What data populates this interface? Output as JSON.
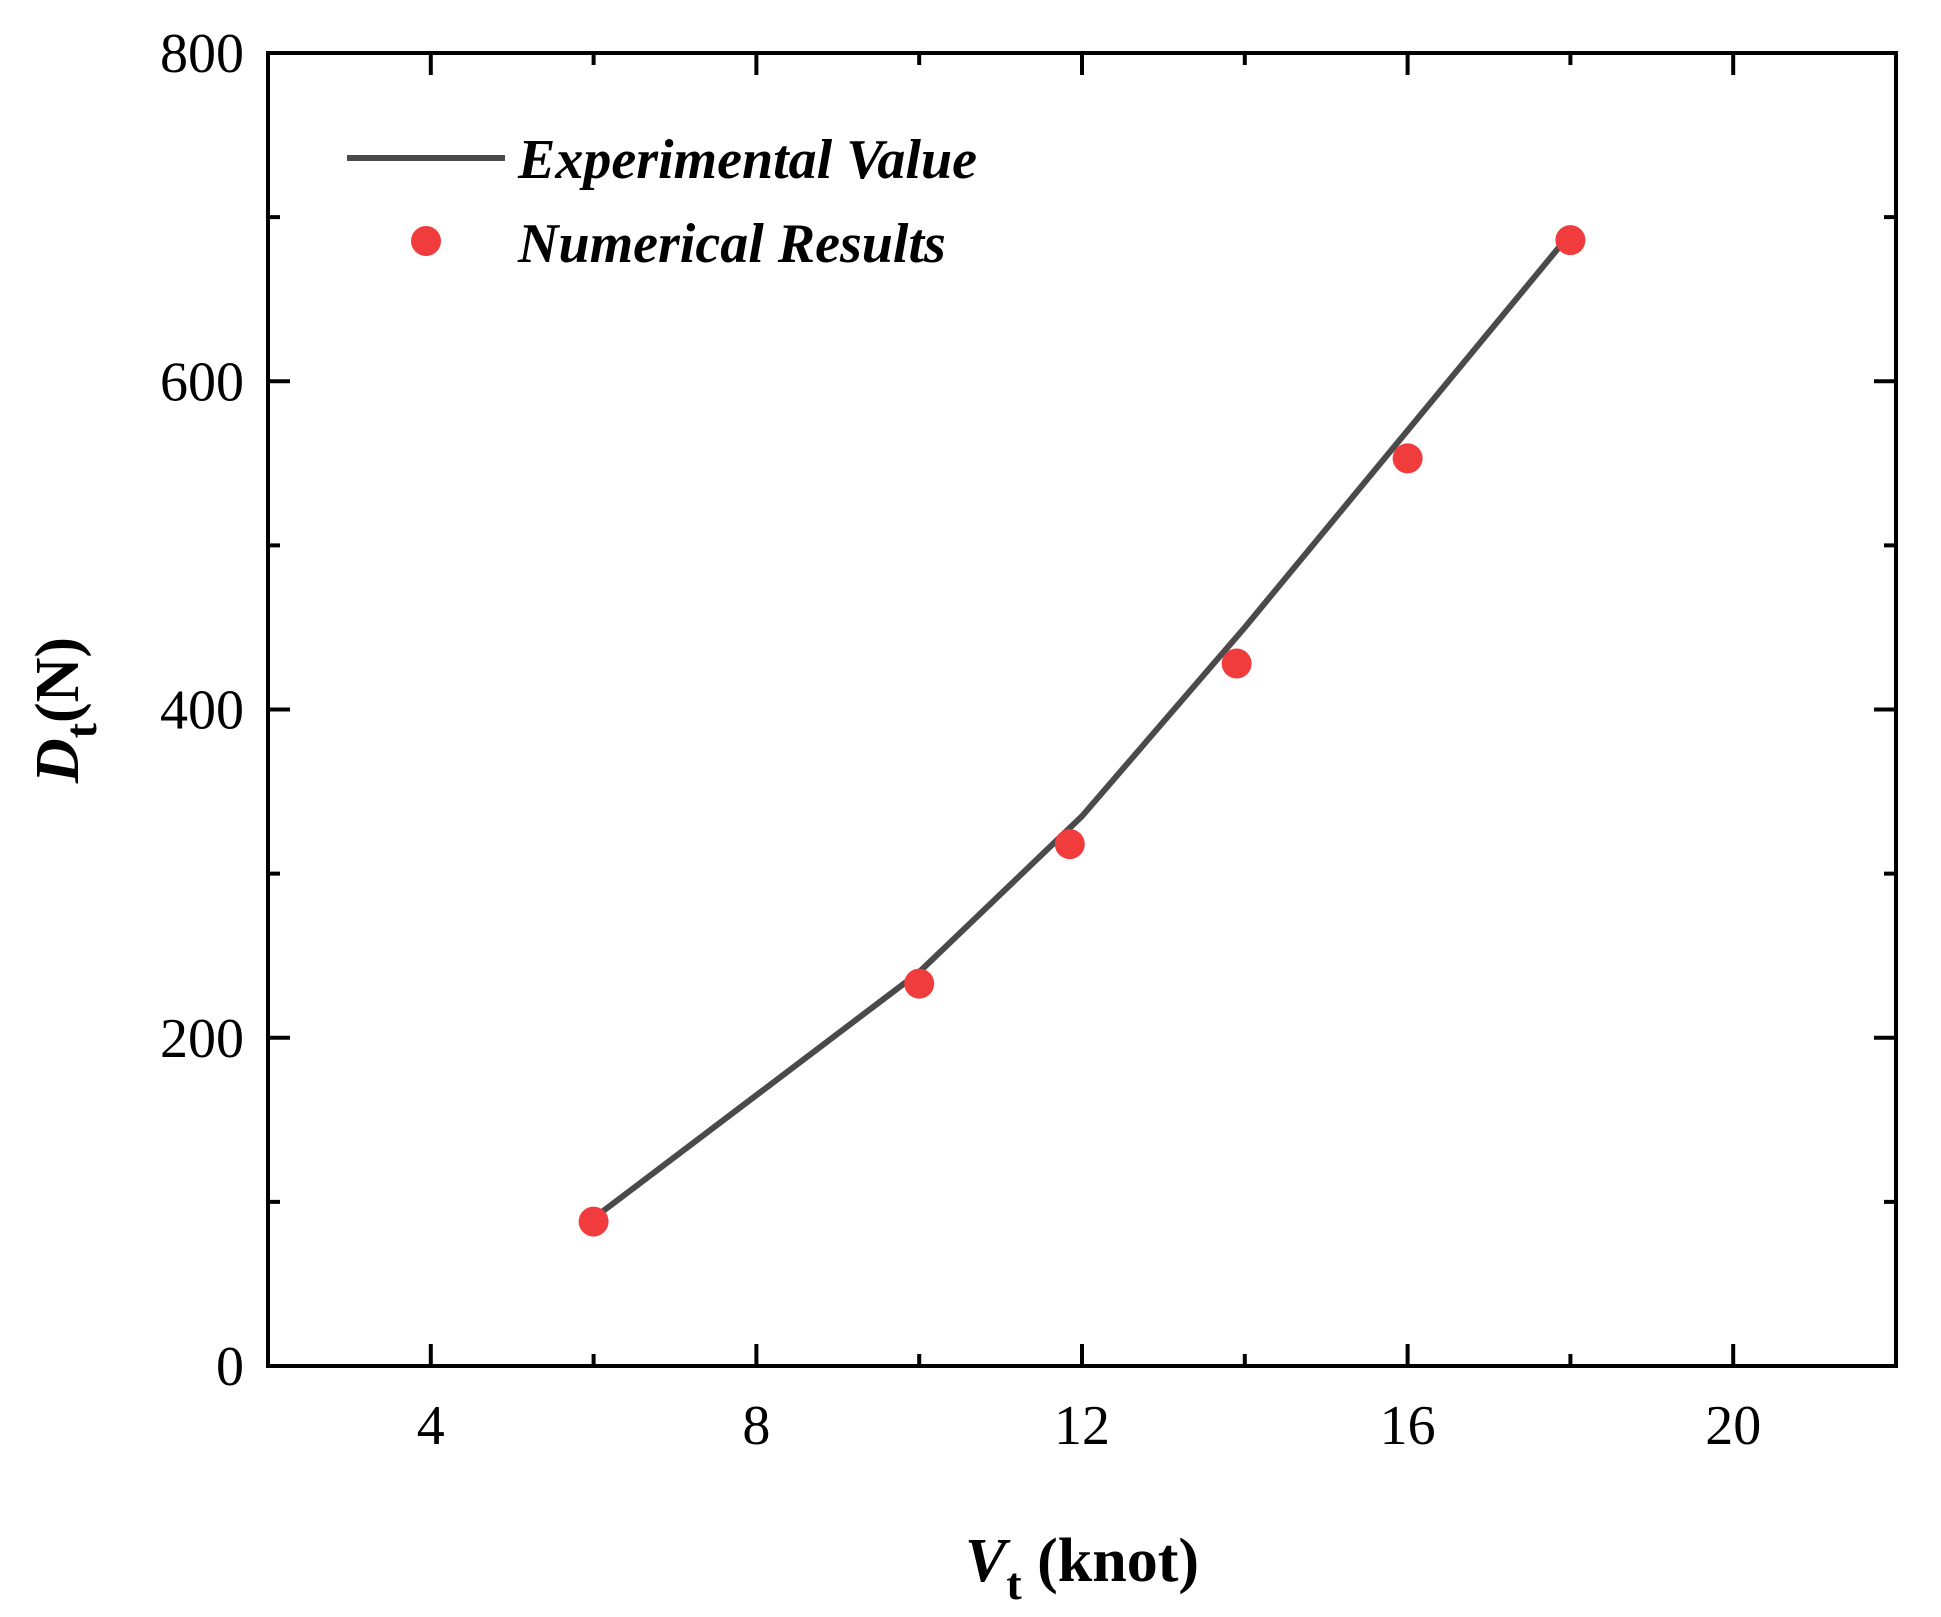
{
  "chart_data": {
    "type": "line+scatter",
    "title": "",
    "xlabel": {
      "main": "V",
      "sub": "t",
      "unit": " (knot)"
    },
    "ylabel": {
      "main": "D",
      "sub": "t",
      "unit": "(N)"
    },
    "xlim": [
      2,
      22
    ],
    "ylim": [
      0,
      800
    ],
    "x_ticks": [
      4,
      8,
      12,
      16,
      20
    ],
    "x_minor_ticks": [
      6,
      10,
      14,
      18
    ],
    "y_ticks": [
      0,
      200,
      400,
      600,
      800
    ],
    "y_minor_ticks": [
      100,
      300,
      500,
      700
    ],
    "grid": false,
    "legend_position": "top-left",
    "series": [
      {
        "name": "Experimental Value",
        "kind": "line",
        "color": "#4a4a4a",
        "x": [
          6,
          8,
          10,
          12,
          14,
          16,
          18
        ],
        "y": [
          90,
          165,
          240,
          335,
          450,
          570,
          690
        ]
      },
      {
        "name": "Numerical Results",
        "kind": "scatter",
        "color": "#f03c3c",
        "x": [
          6,
          10,
          11.85,
          13.9,
          16,
          18
        ],
        "y": [
          88,
          233,
          318,
          428,
          553,
          686
        ]
      }
    ]
  }
}
